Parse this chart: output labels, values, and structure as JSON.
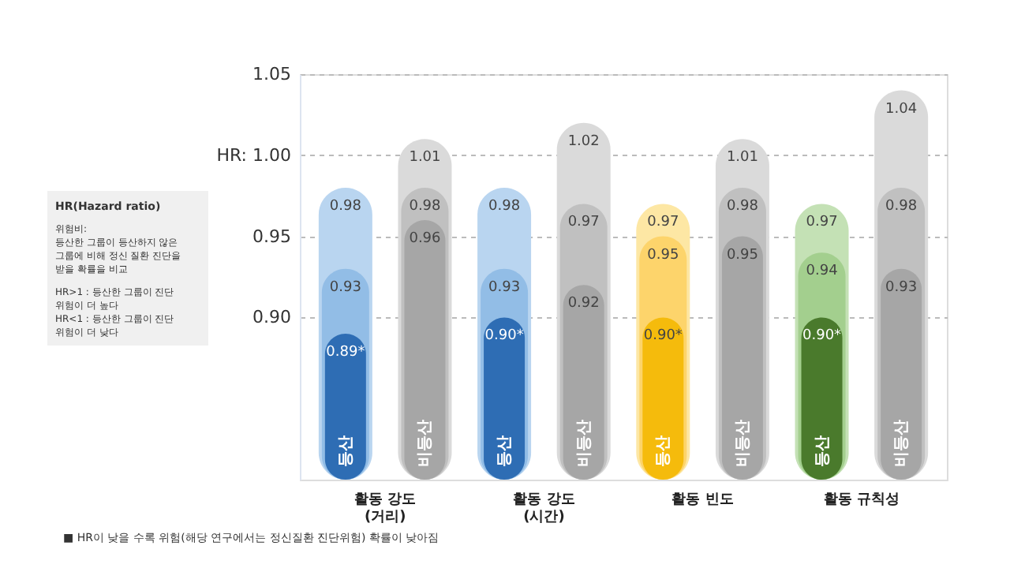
{
  "chart_data": {
    "type": "bar",
    "categories": [
      "등산",
      "비등산",
      "등산",
      "비등산",
      "등산",
      "비등산",
      "등산",
      "비등산"
    ],
    "series": [
      {
        "values": [
          0.98,
          1.01,
          0.98,
          1.02,
          0.97,
          1.01,
          0.97,
          1.04
        ],
        "colors": [
          "#b9d5f0",
          "#dadada",
          "#b9d5f0",
          "#dadada",
          "#fde7a4",
          "#dadada",
          "#c4e1b5",
          "#dadada"
        ]
      },
      {
        "values": [
          0.93,
          0.98,
          0.93,
          0.97,
          0.95,
          0.98,
          0.94,
          0.98
        ],
        "colors": [
          "#92bde6",
          "#c0c0c0",
          "#92bde6",
          "#c0c0c0",
          "#fdd46b",
          "#c0c0c0",
          "#a3cf8e",
          "#c0c0c0"
        ]
      },
      {
        "values": [
          0.89,
          0.96,
          0.9,
          0.92,
          0.9,
          0.95,
          0.9,
          0.93
        ],
        "colors": [
          "#2e6db4",
          "#a6a6a6",
          "#2e6db4",
          "#a6a6a6",
          "#f5bb0c",
          "#a6a6a6",
          "#4a7a2c",
          "#a6a6a6"
        ],
        "value_labels": [
          "0.89*",
          "0.96",
          "0.90*",
          "0.92",
          "0.90*",
          "0.95",
          "0.90*",
          "0.93"
        ]
      }
    ],
    "data_labels": true,
    "ylim": [
      0.8,
      1.05
    ],
    "yticks": [
      {
        "value": 0.9,
        "label": "0.90"
      },
      {
        "value": 0.95,
        "label": "0.95"
      },
      {
        "value": 1.0,
        "label": "HR: 1.00"
      },
      {
        "value": 1.05,
        "label": "1.05"
      }
    ],
    "grid": "y",
    "annotations": [
      "HR(Hazard ratio)",
      "위험비:\n등산한 그룹이 등산하지 않은\n그룹에 비해 정신 질환 진단을\n받을 확률을 비교",
      "HR>1 : 등산한 그룹이 진단\n           위험이 더 높다\nHR<1 : 등산한 그룹이 진단\n           위험이 더 낮다",
      "활동 강도\n(거리)",
      "활동 강도\n(시간)",
      "활동 빈도",
      "활동 규칙성",
      "■  HR이 낮을 수록 위험(해당 연구에서는 정신질환 진단위험) 확률이 낮아짐"
    ]
  }
}
